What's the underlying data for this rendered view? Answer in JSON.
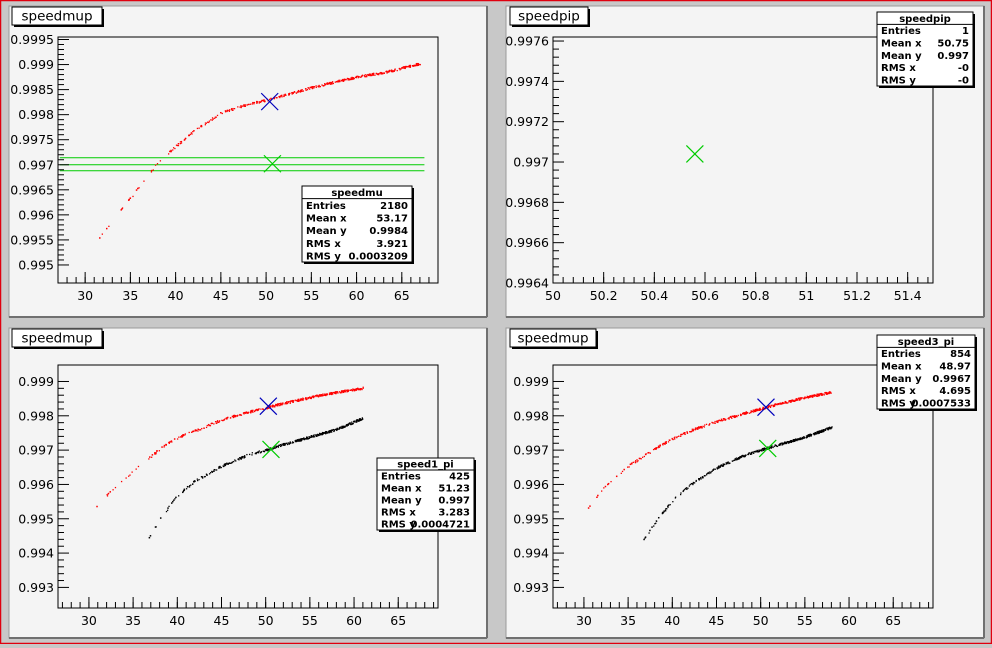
{
  "colors": {
    "window_border": "#e0000f",
    "pad_fill": "#f4f4f4",
    "frame_line": "#000000",
    "red_series": "#ff0000",
    "black_series": "#000000",
    "green": "#00cc00",
    "blue_marker": "#0000bb"
  },
  "chart_data": [
    {
      "type": "scatter",
      "title": "speedmup",
      "xlim": [
        27,
        69
      ],
      "ylim": [
        0.99464,
        0.99955
      ],
      "xticks": [
        30,
        35,
        40,
        45,
        50,
        55,
        60,
        65
      ],
      "yticks": [
        0.995,
        0.9955,
        0.996,
        0.9965,
        0.997,
        0.9975,
        0.998,
        0.9985,
        0.999,
        0.9995
      ],
      "ytick_labels": [
        "0.995",
        "0.9955",
        "0.996",
        "0.9965",
        "0.997",
        "0.9975",
        "0.998",
        "0.9985",
        "0.999",
        "0.9995"
      ],
      "grid": false,
      "series": [
        {
          "color": "red",
          "curve": {
            "x": [
              30,
              32,
              35,
              38,
              40,
              42,
              45,
              48,
              50,
              52,
              55,
              58,
              60,
              63,
              67
            ],
            "y": [
              0.99515,
              0.99565,
              0.99635,
              0.99705,
              0.99738,
              0.99768,
              0.99805,
              0.99822,
              0.9983,
              0.9984,
              0.99855,
              0.99868,
              0.99876,
              0.99885,
              0.99903
            ]
          }
        }
      ],
      "hlines": [
        0.99714,
        0.997,
        0.99688
      ],
      "hline_xrange": [
        27.2,
        67.5
      ],
      "markers": [
        {
          "x": 50.4,
          "y": 0.99826,
          "color": "blue"
        },
        {
          "x": 50.7,
          "y": 0.99702,
          "color": "green"
        }
      ],
      "stats": {
        "name": "speedmu",
        "rows": [
          [
            "Entries",
            "2180"
          ],
          [
            "Mean x",
            "53.17"
          ],
          [
            "Mean y",
            "0.9984"
          ],
          [
            "RMS x",
            "3.921"
          ],
          [
            "RMS y",
            "0.0003209"
          ]
        ]
      }
    },
    {
      "type": "scatter",
      "title": "speedpip",
      "xlim": [
        50,
        51.5
      ],
      "ylim": [
        0.9964,
        0.99762
      ],
      "xticks": [
        50,
        50.2,
        50.4,
        50.6,
        50.8,
        51,
        51.2,
        51.4
      ],
      "xtick_labels": [
        "50",
        "50.2",
        "50.4",
        "50.6",
        "50.8",
        "51",
        "51.2",
        "51.4"
      ],
      "yticks": [
        0.9964,
        0.9966,
        0.9968,
        0.997,
        0.9972,
        0.9974,
        0.9976
      ],
      "ytick_labels": [
        "0.9964",
        "0.9966",
        "0.9968",
        "0.997",
        "0.9972",
        "0.9974",
        "0.9976"
      ],
      "grid": false,
      "series": [],
      "markers": [
        {
          "x": 50.56,
          "y": 0.99704,
          "color": "green"
        }
      ],
      "stats": {
        "name": "speedpip",
        "rows": [
          [
            "Entries",
            "1"
          ],
          [
            "Mean x",
            "50.75"
          ],
          [
            "Mean y",
            "0.997"
          ],
          [
            "RMS x",
            "-0"
          ],
          [
            "RMS y",
            "-0"
          ]
        ]
      }
    },
    {
      "type": "scatter",
      "title": "speedmup",
      "xlim": [
        26.5,
        69.5
      ],
      "ylim": [
        0.9924,
        0.99948
      ],
      "xticks": [
        30,
        35,
        40,
        45,
        50,
        55,
        60,
        65
      ],
      "yticks": [
        0.993,
        0.994,
        0.995,
        0.996,
        0.997,
        0.998,
        0.999
      ],
      "ytick_labels": [
        "0.993",
        "0.994",
        "0.995",
        "0.996",
        "0.997",
        "0.998",
        "0.999"
      ],
      "grid": false,
      "series": [
        {
          "color": "red",
          "curve": {
            "x": [
              30,
              32,
              35,
              38,
              40,
              43,
              45,
              48,
              50,
              52,
              55,
              58,
              61
            ],
            "y": [
              0.9951,
              0.9957,
              0.9964,
              0.99705,
              0.99738,
              0.99768,
              0.9979,
              0.99812,
              0.99825,
              0.99838,
              0.99855,
              0.9987,
              0.99882
            ]
          }
        },
        {
          "color": "black",
          "curve": {
            "x": [
              36,
              38,
              40,
              42,
              45,
              48,
              50,
              52,
              55,
              58,
              61
            ],
            "y": [
              0.9941,
              0.995,
              0.9957,
              0.99612,
              0.99655,
              0.99688,
              0.99702,
              0.99718,
              0.9974,
              0.99762,
              0.99795
            ]
          }
        }
      ],
      "markers": [
        {
          "x": 50.3,
          "y": 0.99828,
          "color": "blue"
        },
        {
          "x": 50.6,
          "y": 0.99702,
          "color": "green"
        }
      ],
      "stats": {
        "name": "speed1_pi",
        "rows": [
          [
            "Entries",
            "425"
          ],
          [
            "Mean x",
            "51.23"
          ],
          [
            "Mean y",
            "0.997"
          ],
          [
            "RMS x",
            "3.283"
          ],
          [
            "RMS y",
            "0.0004721"
          ]
        ]
      }
    },
    {
      "type": "scatter",
      "title": "speedmup",
      "xlim": [
        26.5,
        69.5
      ],
      "ylim": [
        0.9924,
        0.99948
      ],
      "xticks": [
        30,
        35,
        40,
        45,
        50,
        55,
        60,
        65
      ],
      "yticks": [
        0.993,
        0.994,
        0.995,
        0.996,
        0.997,
        0.998,
        0.999
      ],
      "ytick_labels": [
        "0.993",
        "0.994",
        "0.995",
        "0.996",
        "0.997",
        "0.998",
        "0.999"
      ],
      "grid": false,
      "series": [
        {
          "color": "red",
          "curve": {
            "x": [
              30,
              32,
              35,
              38,
              40,
              42,
              45,
              48,
              50,
              52,
              55,
              58
            ],
            "y": [
              0.99515,
              0.99585,
              0.99655,
              0.99705,
              0.99735,
              0.99758,
              0.99785,
              0.99808,
              0.99822,
              0.99836,
              0.99855,
              0.9987
            ]
          }
        },
        {
          "color": "black",
          "curve": {
            "x": [
              36,
              38,
              40,
              42,
              45,
              48,
              50,
              52,
              55,
              58
            ],
            "y": [
              0.9941,
              0.9949,
              0.99555,
              0.996,
              0.9965,
              0.99685,
              0.99702,
              0.99717,
              0.9974,
              0.99768
            ]
          }
        }
      ],
      "markers": [
        {
          "x": 50.6,
          "y": 0.99825,
          "color": "blue"
        },
        {
          "x": 50.8,
          "y": 0.99705,
          "color": "green"
        }
      ],
      "stats": {
        "name": "speed3_pi",
        "rows": [
          [
            "Entries",
            "854"
          ],
          [
            "Mean x",
            "48.97"
          ],
          [
            "Mean y",
            "0.9967"
          ],
          [
            "RMS x",
            "4.695"
          ],
          [
            "RMS y",
            "0.0007533"
          ]
        ]
      }
    }
  ]
}
